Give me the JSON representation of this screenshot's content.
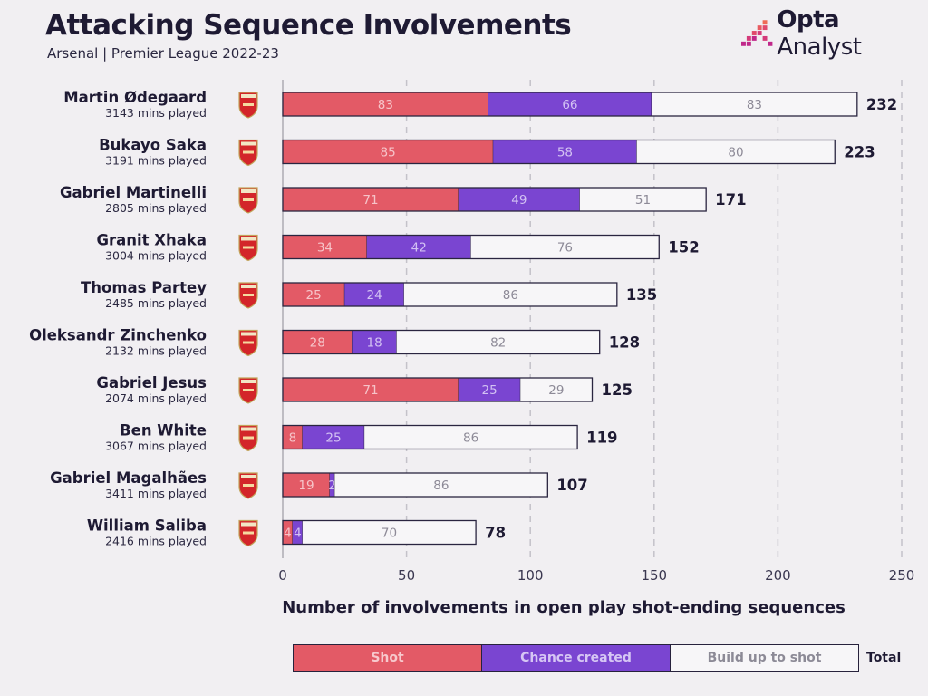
{
  "header": {
    "title": "Attacking Sequence Involvements",
    "subtitle": "Arsenal | Premier League 2022-23",
    "brand_strong": "Opta",
    "brand_light": "Analyst"
  },
  "colors": {
    "shot": "#e35a66",
    "chance": "#7a45d1",
    "build": "#f7f6f8",
    "shot_label": "#f6c4c9",
    "chance_label": "#d3c2f3",
    "build_label": "#8d8a97",
    "outline": "#2a2540",
    "grid": "#c4c2c9"
  },
  "chart_data": {
    "type": "bar",
    "orientation": "horizontal",
    "stacked": true,
    "xlabel": "Number of involvements in open play shot-ending sequences",
    "xlim": [
      0,
      250
    ],
    "xticks": [
      0,
      50,
      100,
      150,
      200,
      250
    ],
    "grid": true,
    "series_names": [
      "Shot",
      "Chance created",
      "Build up to shot"
    ],
    "total_label": "Total",
    "players": [
      {
        "name": "Martin Ødegaard",
        "mins": "3143 mins played",
        "shot": 83,
        "chance": 66,
        "build": 83,
        "total": 232
      },
      {
        "name": "Bukayo Saka",
        "mins": "3191 mins played",
        "shot": 85,
        "chance": 58,
        "build": 80,
        "total": 223
      },
      {
        "name": "Gabriel Martinelli",
        "mins": "2805 mins played",
        "shot": 71,
        "chance": 49,
        "build": 51,
        "total": 171
      },
      {
        "name": "Granit Xhaka",
        "mins": "3004 mins played",
        "shot": 34,
        "chance": 42,
        "build": 76,
        "total": 152
      },
      {
        "name": "Thomas Partey",
        "mins": "2485 mins played",
        "shot": 25,
        "chance": 24,
        "build": 86,
        "total": 135
      },
      {
        "name": "Oleksandr Zinchenko",
        "mins": "2132 mins played",
        "shot": 28,
        "chance": 18,
        "build": 82,
        "total": 128
      },
      {
        "name": "Gabriel Jesus",
        "mins": "2074 mins played",
        "shot": 71,
        "chance": 25,
        "build": 29,
        "total": 125
      },
      {
        "name": "Ben White",
        "mins": "3067 mins played",
        "shot": 8,
        "chance": 25,
        "build": 86,
        "total": 119
      },
      {
        "name": "Gabriel Magalhães",
        "mins": "3411 mins played",
        "shot": 19,
        "chance": 2,
        "build": 86,
        "total": 107
      },
      {
        "name": "William Saliba",
        "mins": "2416 mins played",
        "shot": 4,
        "chance": 4,
        "build": 70,
        "total": 78
      }
    ]
  }
}
